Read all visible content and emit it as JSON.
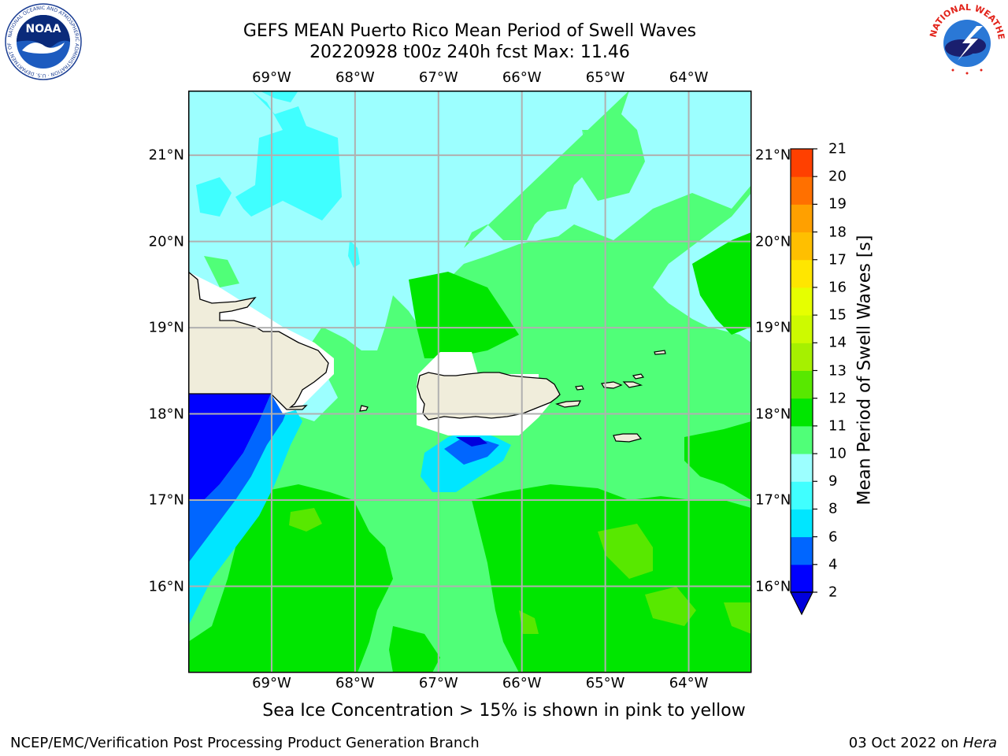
{
  "title": {
    "line1": "GEFS MEAN Puerto Rico Mean Period of Swell Waves",
    "line2": "20220928 t00z 240h fcst   Max: 11.46"
  },
  "map": {
    "lon_ticks": [
      "69°W",
      "68°W",
      "67°W",
      "66°W",
      "65°W",
      "64°W"
    ],
    "lat_ticks": [
      "21°N",
      "20°N",
      "19°N",
      "18°N",
      "17°N",
      "16°N"
    ],
    "lon_range": [
      -70.0,
      -63.25
    ],
    "lat_range": [
      15.0,
      21.75
    ],
    "ocean_color": "#9cffff",
    "land_color": "#f0eddb"
  },
  "colorbar": {
    "title": "Mean Period of Swell Waves [s]",
    "levels": [
      "2",
      "4",
      "6",
      "8",
      "9",
      "10",
      "11",
      "12",
      "13",
      "14",
      "15",
      "16",
      "17",
      "18",
      "19",
      "20",
      "21"
    ],
    "colors": [
      "#0000ff",
      "#0066ff",
      "#00e6ff",
      "#40ffff",
      "#9cffff",
      "#50ff78",
      "#00e600",
      "#58e800",
      "#a6f000",
      "#cdfa00",
      "#e6ff00",
      "#ffe600",
      "#ffbf00",
      "#ffa000",
      "#ff7000",
      "#ff4000",
      "#ff0000"
    ],
    "under_color": "#0000dd"
  },
  "note": "Sea Ice Concentration > 15% is shown in pink to yellow",
  "footer": {
    "left": "NCEP/EMC/Verification Post Processing Product Generation Branch",
    "date": "03 Oct 2022 on",
    "machine": "Hera"
  },
  "logos": {
    "noaa_text": "NOAA",
    "noaa_ring_text": "NATIONAL OCEANIC AND ATMOSPHERIC ADMINISTRATION · U.S. DEPARTMENT OF COMMERCE",
    "nws_ring_text": "NATIONAL WEATHER SERVICE"
  }
}
